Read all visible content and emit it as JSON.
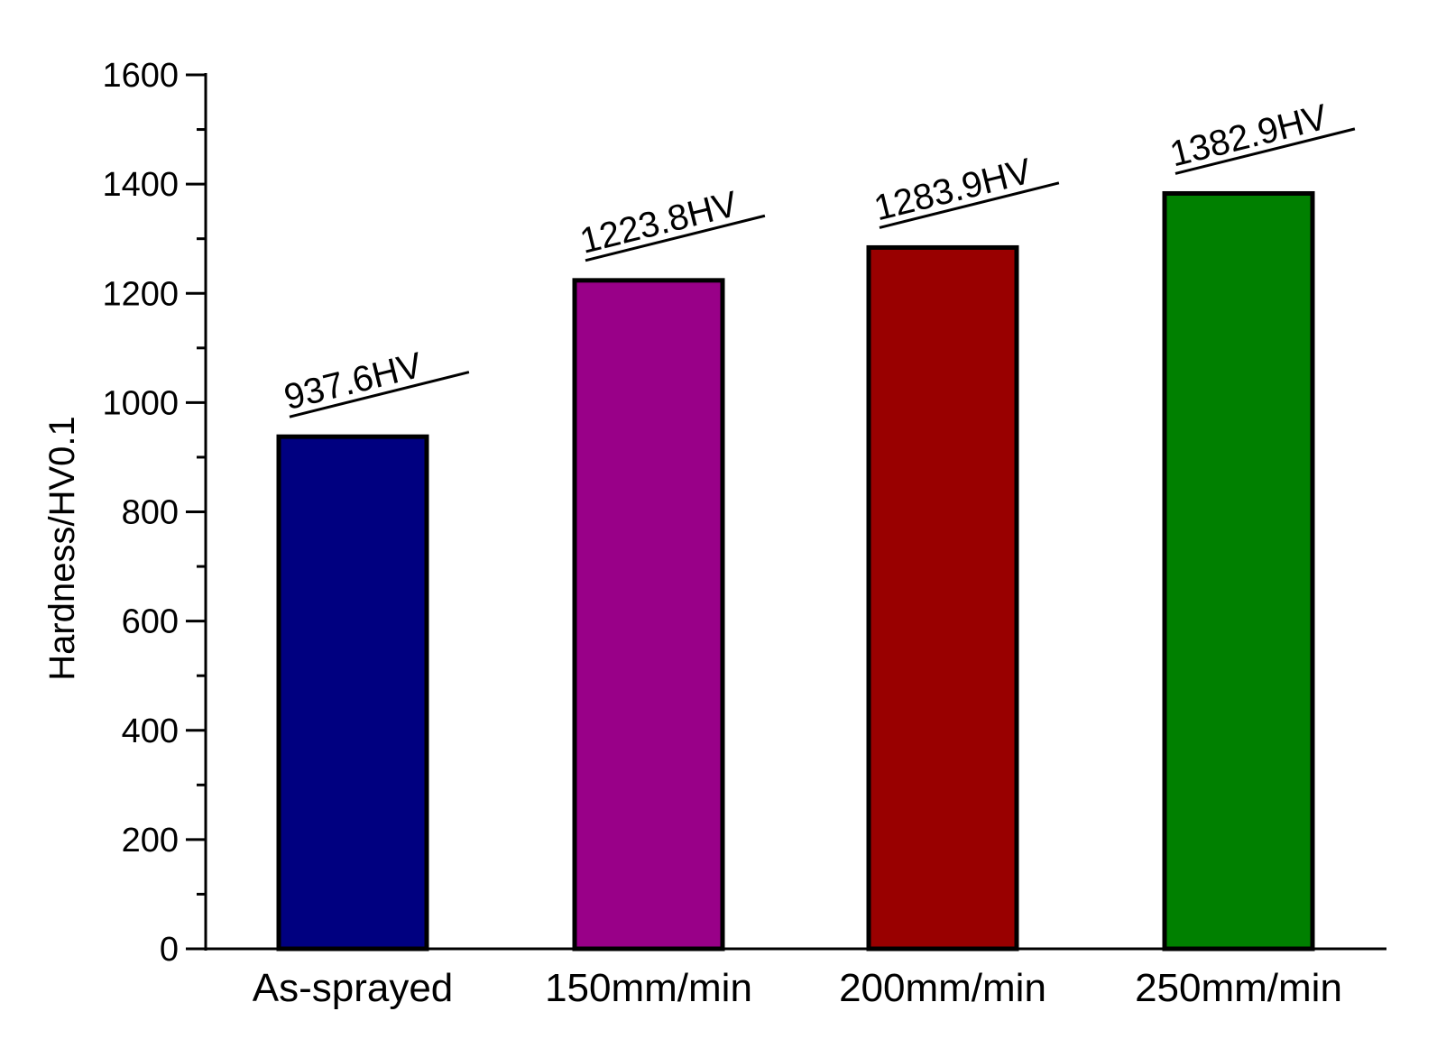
{
  "chart_data": {
    "type": "bar",
    "title": "",
    "xlabel": "",
    "ylabel": "Hardness/HV0.1",
    "categories": [
      "As-sprayed",
      "150mm/min",
      "200mm/min",
      "250mm/min"
    ],
    "values": [
      937.6,
      1223.8,
      1283.9,
      1382.9
    ],
    "value_labels": [
      "937.6HV",
      "1223.8HV",
      "1283.9HV",
      "1382.9HV"
    ],
    "colors": [
      "#000080",
      "#990088",
      "#990000",
      "#008000"
    ],
    "ylim": [
      0,
      1600
    ],
    "yticks": [
      0,
      200,
      400,
      600,
      800,
      1000,
      1200,
      1400,
      1600
    ],
    "minor_tick_step": 100,
    "grid": false,
    "legend": "none"
  }
}
